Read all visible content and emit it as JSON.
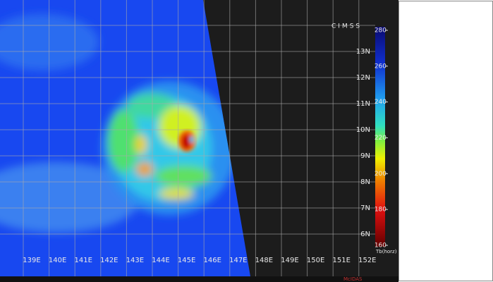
{
  "logo": "CIMSS",
  "footer": "McIDAS",
  "longitude_labels": [
    "139E",
    "140E",
    "141E",
    "142E",
    "143E",
    "144E",
    "145E",
    "146E",
    "147E",
    "148E",
    "149E",
    "150E",
    "151E",
    "152E"
  ],
  "latitude_labels": [
    "13N",
    "12N",
    "11N",
    "10N",
    "9N",
    "8N",
    "7N",
    "6N"
  ],
  "colorbar": {
    "label": "Tb(horz)",
    "lim": [
      160,
      280
    ],
    "ticks": [
      280,
      260,
      240,
      220,
      200,
      180,
      160
    ]
  }
}
